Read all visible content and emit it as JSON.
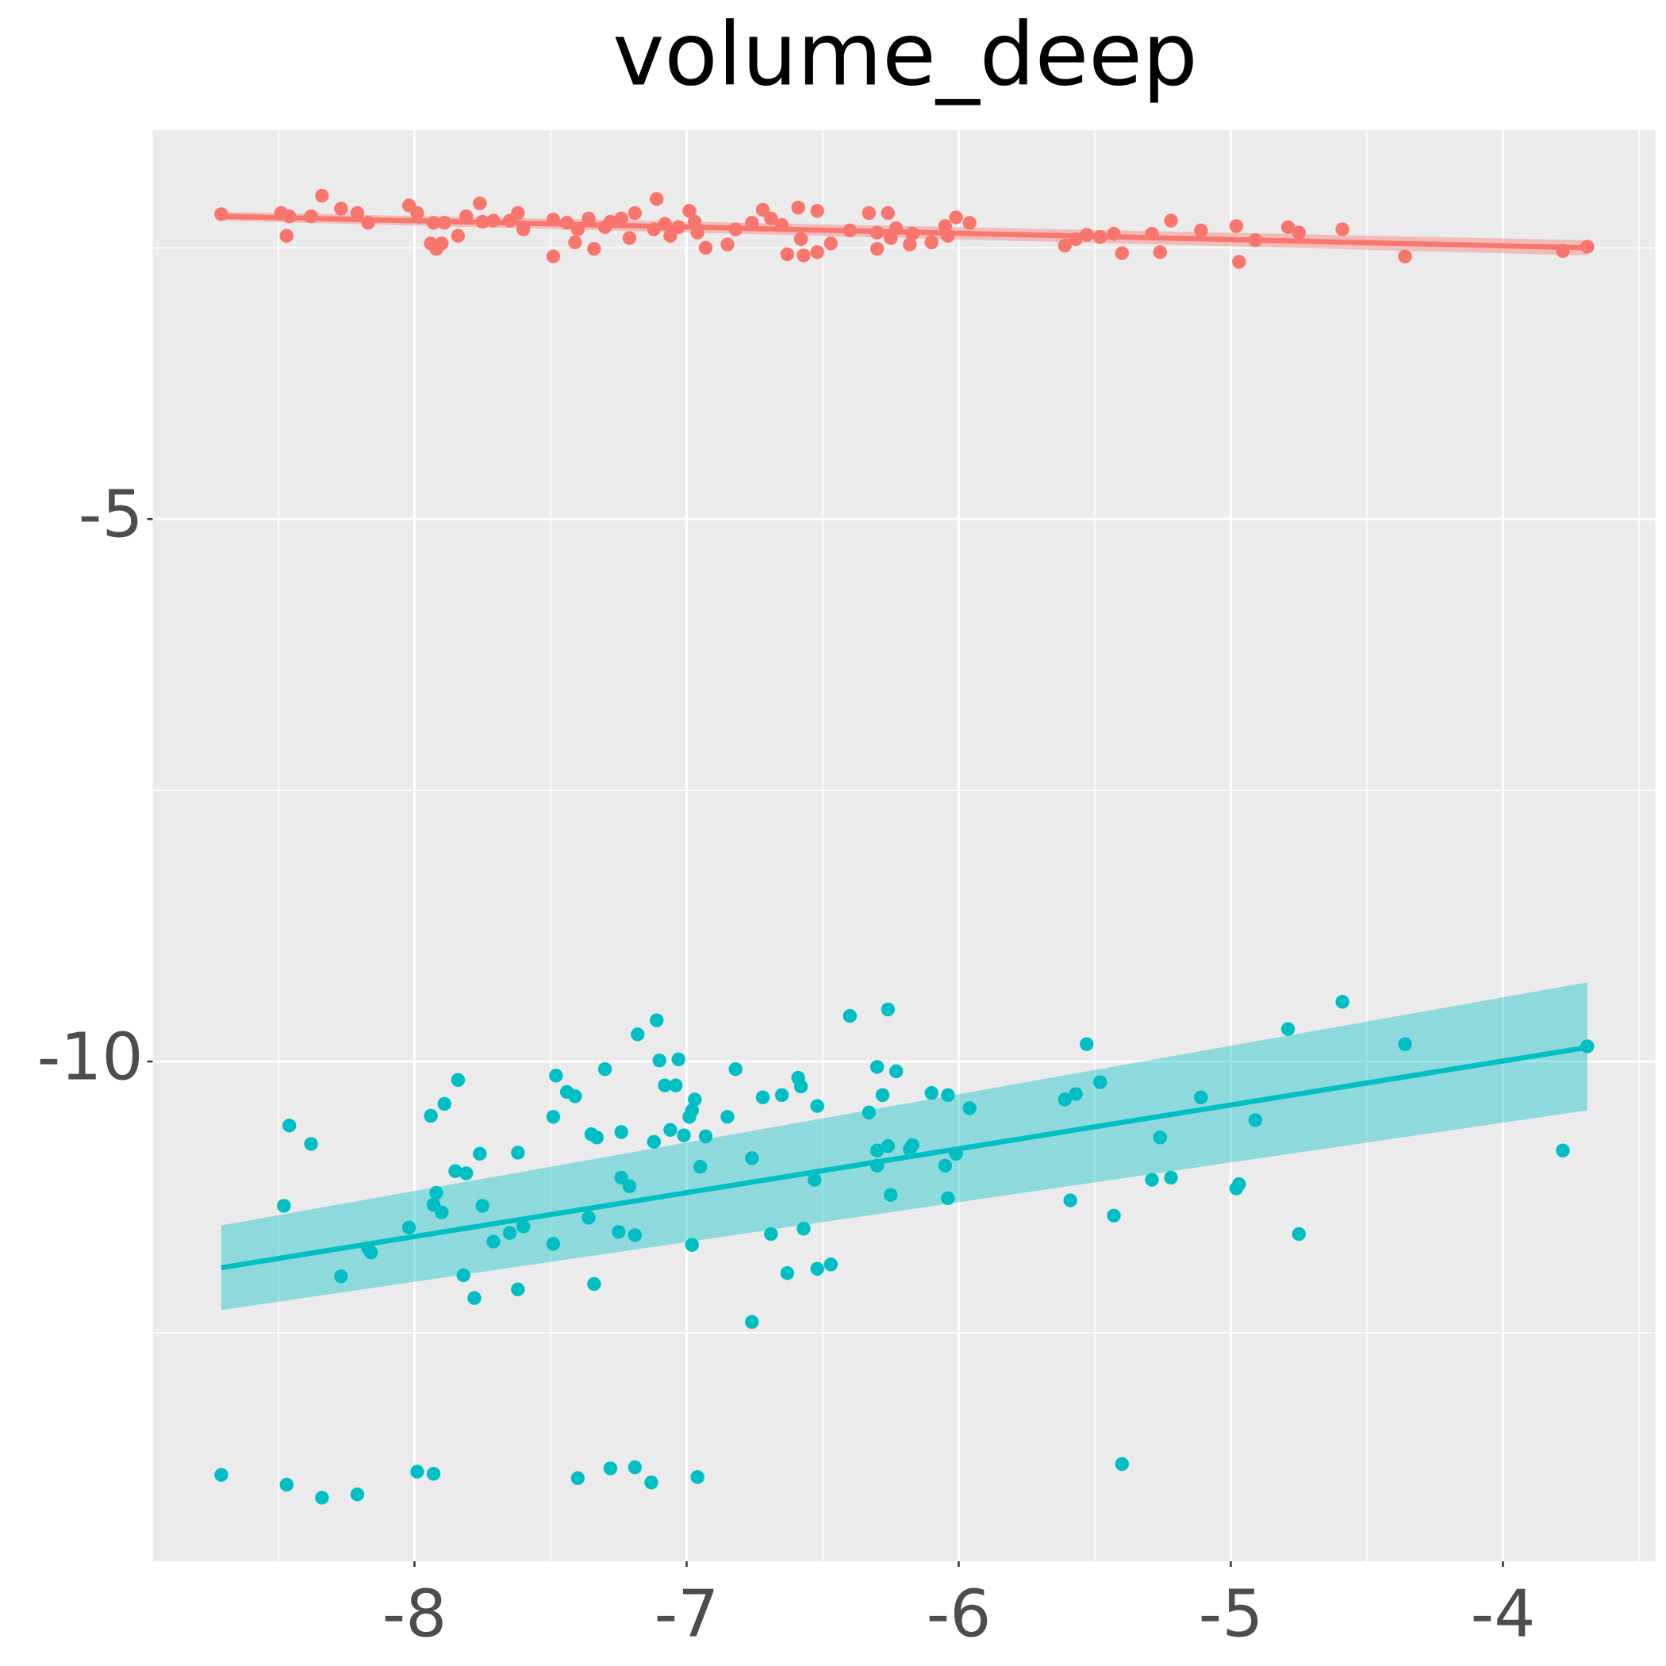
{
  "chart_data": {
    "type": "scatter",
    "title": "volume_deep",
    "xlim": [
      -8.962,
      -3.44
    ],
    "ylim": [
      -14.606,
      -1.417
    ],
    "xticks": [
      -8,
      -7,
      -6,
      -5,
      -4
    ],
    "yticks": [
      -5,
      -10
    ],
    "xminor": [
      -8.5,
      -7.5,
      -6.5,
      -5.5,
      -4.5,
      -3.5
    ],
    "yminor": [
      -2.5,
      -7.5,
      -12.5
    ],
    "grid": true,
    "series": [
      {
        "color": "#f8766d",
        "x": [
          -8.71,
          -8.49,
          -8.46,
          -8.47,
          -8.38,
          -8.34,
          -8.27,
          -8.21,
          -8.17,
          -8.02,
          -7.99,
          -7.93,
          -7.89,
          -7.94,
          -7.92,
          -7.9,
          -7.84,
          -7.81,
          -7.76,
          -7.75,
          -7.71,
          -7.65,
          -7.62,
          -7.6,
          -7.49,
          -7.49,
          -7.44,
          -7.41,
          -7.4,
          -7.36,
          -7.34,
          -7.3,
          -7.28,
          -7.24,
          -7.19,
          -7.21,
          -7.11,
          -7.12,
          -7.08,
          -7.06,
          -7.03,
          -6.99,
          -6.97,
          -6.96,
          -6.93,
          -6.85,
          -6.82,
          -6.76,
          -6.72,
          -6.69,
          -6.65,
          -6.63,
          -6.59,
          -6.58,
          -6.57,
          -6.52,
          -6.52,
          -6.47,
          -6.4,
          -6.33,
          -6.3,
          -6.3,
          -6.26,
          -6.25,
          -6.23,
          -6.18,
          -6.17,
          -6.1,
          -6.05,
          -6.04,
          -6.01,
          -5.96,
          -5.61,
          -5.57,
          -5.53,
          -5.48,
          -5.43,
          -5.4,
          -5.29,
          -5.26,
          -5.22,
          -5.11,
          -4.98,
          -4.97,
          -4.91,
          -4.79,
          -4.75,
          -4.59,
          -4.36,
          -3.78,
          -3.69
        ],
        "values": [
          -2.19,
          -2.18,
          -2.21,
          -2.39,
          -2.21,
          -2.02,
          -2.14,
          -2.18,
          -2.27,
          -2.11,
          -2.18,
          -2.27,
          -2.27,
          -2.46,
          -2.51,
          -2.46,
          -2.39,
          -2.21,
          -2.09,
          -2.26,
          -2.25,
          -2.25,
          -2.18,
          -2.33,
          -2.58,
          -2.24,
          -2.27,
          -2.45,
          -2.33,
          -2.23,
          -2.51,
          -2.31,
          -2.26,
          -2.23,
          -2.18,
          -2.41,
          -2.05,
          -2.33,
          -2.28,
          -2.39,
          -2.31,
          -2.16,
          -2.26,
          -2.36,
          -2.5,
          -2.47,
          -2.33,
          -2.27,
          -2.15,
          -2.23,
          -2.29,
          -2.56,
          -2.13,
          -2.42,
          -2.57,
          -2.16,
          -2.54,
          -2.46,
          -2.34,
          -2.18,
          -2.36,
          -2.51,
          -2.18,
          -2.41,
          -2.32,
          -2.47,
          -2.37,
          -2.45,
          -2.3,
          -2.39,
          -2.22,
          -2.27,
          -2.48,
          -2.42,
          -2.38,
          -2.4,
          -2.37,
          -2.55,
          -2.37,
          -2.54,
          -2.25,
          -2.34,
          -2.3,
          -2.63,
          -2.43,
          -2.31,
          -2.36,
          -2.33,
          -2.58,
          -2.53,
          -2.49
        ],
        "fit": {
          "x": [
            -8.71,
            -3.69
          ],
          "values": [
            -2.21,
            -2.5
          ]
        },
        "band": {
          "x": [
            -8.71,
            -3.69
          ],
          "lower": [
            -2.25,
            -2.57
          ],
          "upper": [
            -2.17,
            -2.43
          ]
        }
      },
      {
        "color": "#00bfc4",
        "x": [
          -8.71,
          -8.48,
          -8.46,
          -8.47,
          -8.38,
          -8.34,
          -8.27,
          -8.21,
          -8.17,
          -8.16,
          -8.02,
          -7.99,
          -7.93,
          -7.94,
          -7.92,
          -7.93,
          -7.9,
          -7.89,
          -7.84,
          -7.85,
          -7.81,
          -7.82,
          -7.78,
          -7.76,
          -7.75,
          -7.71,
          -7.65,
          -7.62,
          -7.62,
          -7.6,
          -7.49,
          -7.49,
          -7.48,
          -7.44,
          -7.41,
          -7.4,
          -7.36,
          -7.35,
          -7.33,
          -7.34,
          -7.3,
          -7.28,
          -7.25,
          -7.24,
          -7.24,
          -7.21,
          -7.19,
          -7.19,
          -7.18,
          -7.13,
          -7.12,
          -7.11,
          -7.1,
          -7.08,
          -7.06,
          -7.04,
          -7.03,
          -7.01,
          -6.99,
          -6.98,
          -6.97,
          -6.98,
          -6.96,
          -6.95,
          -6.93,
          -6.85,
          -6.82,
          -6.76,
          -6.76,
          -6.72,
          -6.69,
          -6.65,
          -6.63,
          -6.59,
          -6.58,
          -6.57,
          -6.53,
          -6.52,
          -6.52,
          -6.47,
          -6.4,
          -6.33,
          -6.3,
          -6.3,
          -6.3,
          -6.28,
          -6.26,
          -6.26,
          -6.25,
          -6.23,
          -6.18,
          -6.17,
          -6.1,
          -6.05,
          -6.04,
          -6.04,
          -6.01,
          -5.96,
          -5.61,
          -5.59,
          -5.57,
          -5.53,
          -5.48,
          -5.43,
          -5.4,
          -5.29,
          -5.26,
          -5.22,
          -5.11,
          -4.98,
          -4.97,
          -4.91,
          -4.79,
          -4.75,
          -4.59,
          -4.36,
          -3.78,
          -3.69
        ],
        "values": [
          -13.81,
          -11.33,
          -10.59,
          -13.9,
          -10.76,
          -14.02,
          -11.98,
          -13.99,
          -11.72,
          -11.76,
          -11.53,
          -13.78,
          -13.8,
          -10.5,
          -11.21,
          -11.32,
          -11.39,
          -10.39,
          -10.17,
          -11.01,
          -11.03,
          -11.97,
          -12.18,
          -10.85,
          -11.33,
          -11.66,
          -11.58,
          -10.84,
          -12.1,
          -11.52,
          -10.51,
          -11.68,
          -10.13,
          -10.28,
          -10.32,
          -13.84,
          -11.44,
          -10.67,
          -10.7,
          -12.05,
          -10.07,
          -13.75,
          -11.57,
          -10.65,
          -11.07,
          -11.15,
          -11.6,
          -13.74,
          -9.75,
          -13.88,
          -10.74,
          -9.62,
          -9.99,
          -10.22,
          -10.63,
          -10.22,
          -9.98,
          -10.68,
          -10.51,
          -10.45,
          -10.35,
          -11.69,
          -13.83,
          -10.97,
          -10.69,
          -10.51,
          -10.07,
          -10.89,
          -12.4,
          -10.33,
          -11.59,
          -10.31,
          -11.95,
          -10.15,
          -10.23,
          -11.54,
          -11.09,
          -10.41,
          -11.91,
          -11.87,
          -9.58,
          -10.47,
          -10.05,
          -10.82,
          -10.96,
          -10.31,
          -10.78,
          -9.52,
          -11.23,
          -10.09,
          -10.81,
          -10.77,
          -10.29,
          -10.96,
          -10.31,
          -11.26,
          -10.85,
          -10.43,
          -10.35,
          -11.28,
          -10.3,
          -9.84,
          -10.19,
          -11.42,
          -13.71,
          -11.09,
          -10.7,
          -11.07,
          -10.33,
          -11.17,
          -11.13,
          -10.54,
          -9.7,
          -11.59,
          -9.45,
          -9.84,
          -10.82,
          -9.86
        ],
        "fit": {
          "x": [
            -8.71,
            -3.69
          ],
          "values": [
            -11.9,
            -9.87
          ]
        },
        "band": {
          "x": [
            -8.71,
            -3.69
          ],
          "lower": [
            -12.29,
            -10.45
          ],
          "upper": [
            -11.51,
            -9.27
          ]
        }
      }
    ]
  }
}
